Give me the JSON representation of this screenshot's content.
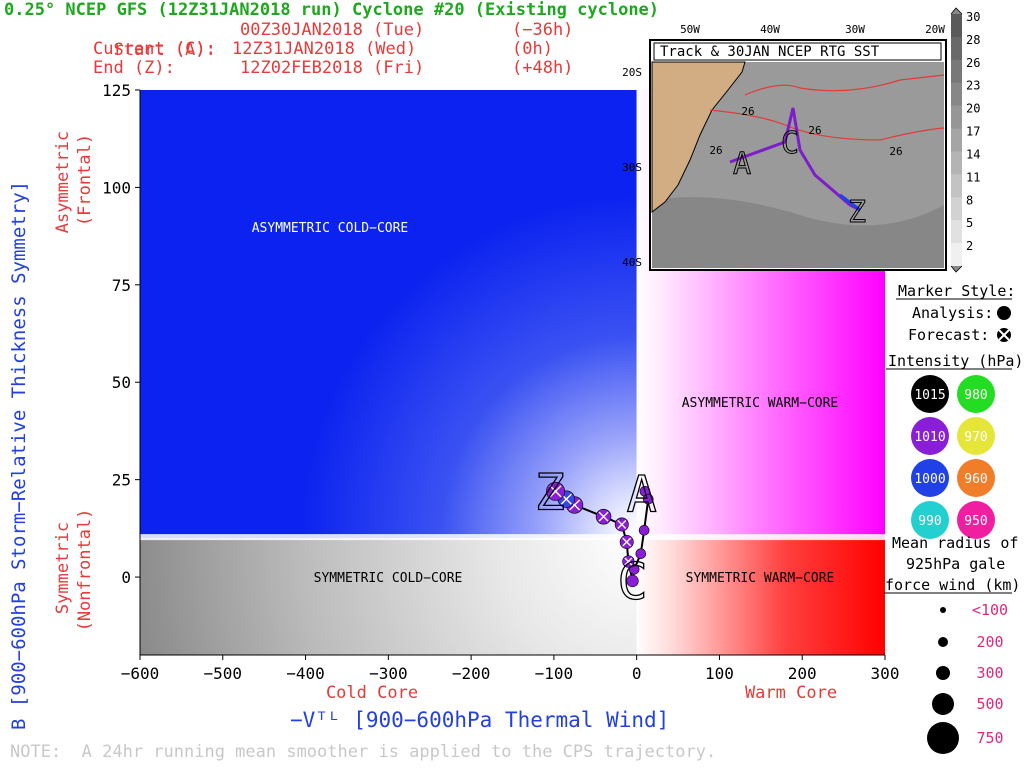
{
  "header": {
    "title": "0.25° NCEP GFS (12Z31JAN2018 run) Cyclone #20 (Existing cyclone)",
    "start_label": "Start (A):",
    "start_time": "00Z30JAN2018 (Tue)",
    "start_offset": "(−36h)",
    "current_label": "Current (C):",
    "current_time": "12Z31JAN2018 (Wed)",
    "current_offset": "(0h)",
    "end_label": "End (Z):",
    "end_time": "12Z02FEB2018 (Fri)",
    "end_offset": "(+48h)"
  },
  "chart_data": {
    "type": "scatter",
    "xlabel": "−Vᵀᴸ [900−600hPa Thermal Wind]",
    "ylabel": "B [900−600hPa Storm−Relative Thickness Symmetry]",
    "xlim": [
      -600,
      300
    ],
    "ylim": [
      -20,
      125
    ],
    "xticks": [
      "−600",
      "−500",
      "−400",
      "−300",
      "−200",
      "−100",
      "0",
      "100",
      "200",
      "300"
    ],
    "yticks": [
      "125",
      "100",
      "75",
      "50",
      "25",
      "0"
    ],
    "y_label_asymmetric": "Asymmetric",
    "y_label_frontal": "(Frontal)",
    "y_label_symmetric": "Symmetric",
    "y_label_nonfrontal": "(Nonfrontal)",
    "x_label_cold": "Cold Core",
    "x_label_warm": "Warm Core",
    "regions": {
      "asym_cold": "ASYMMETRIC COLD−CORE",
      "asym_warm": "ASYMMETRIC WARM−CORE",
      "sym_cold": "SYMMETRIC COLD−CORE",
      "sym_warm": "SYMMETRIC WARM−CORE"
    },
    "markers": {
      "start": "A",
      "current": "C",
      "end": "Z"
    },
    "trajectory": [
      {
        "x": 10,
        "y": 22,
        "kind": "analysis",
        "size": 6
      },
      {
        "x": 14,
        "y": 20,
        "kind": "analysis",
        "size": 6
      },
      {
        "x": 9,
        "y": 12,
        "kind": "analysis",
        "size": 6
      },
      {
        "x": 5,
        "y": 6,
        "kind": "analysis",
        "size": 6
      },
      {
        "x": -3,
        "y": 2,
        "kind": "analysis",
        "size": 6
      },
      {
        "x": -5,
        "y": -1,
        "kind": "analysis",
        "size": 7
      },
      {
        "x": -10,
        "y": 4,
        "kind": "forecast",
        "size": 7
      },
      {
        "x": -12,
        "y": 9,
        "kind": "forecast",
        "size": 8
      },
      {
        "x": -18,
        "y": 13.5,
        "kind": "forecast",
        "size": 8
      },
      {
        "x": -40,
        "y": 15.5,
        "kind": "forecast",
        "size": 9
      },
      {
        "x": -75,
        "y": 18.5,
        "kind": "forecast",
        "size": 10
      },
      {
        "x": -85,
        "y": 20,
        "kind": "forecast",
        "size": 10
      },
      {
        "x": -98,
        "y": 22,
        "kind": "forecast",
        "size": 11
      }
    ],
    "grid": false
  },
  "inset": {
    "title": "Track & 30JAN NCEP RTG SST",
    "lon_labels": [
      "50W",
      "40W",
      "30W",
      "20W"
    ],
    "lat_labels": [
      "20S",
      "30S",
      "40S"
    ],
    "sst_labels": [
      "26",
      "26",
      "26",
      "26"
    ],
    "colorbar": [
      "30",
      "28",
      "26",
      "23",
      "20",
      "17",
      "14",
      "11",
      "8",
      "5",
      "2"
    ]
  },
  "legend": {
    "marker_style_title": "Marker Style:",
    "analysis": "Analysis:",
    "forecast": "Forecast:",
    "intensity_title": "Intensity (hPa):",
    "intensity": [
      {
        "value": "1015",
        "color": "#000000"
      },
      {
        "value": "980",
        "color": "#22dd22"
      },
      {
        "value": "1010",
        "color": "#8a1ed8"
      },
      {
        "value": "970",
        "color": "#e6e63a"
      },
      {
        "value": "1000",
        "color": "#2040e8"
      },
      {
        "value": "960",
        "color": "#f07d2a"
      },
      {
        "value": "990",
        "color": "#22d0d0"
      },
      {
        "value": "950",
        "color": "#f01ea0"
      }
    ],
    "radius_title_1": "Mean radius of",
    "radius_title_2": "925hPa gale",
    "radius_title_3": "force wind (km):",
    "radius": [
      "<100",
      "200",
      "300",
      "500",
      "750"
    ]
  },
  "footer": {
    "note": "NOTE:  A 24hr running mean smoother is applied to the CPS trajectory."
  },
  "colors": {
    "title": "#1fa81f",
    "info": "#e83a3a",
    "axis_label": "#2440e0",
    "asym_cold": "#0b22f0",
    "asym_warm": "#ff00ff",
    "sym_warm": "#ff0000",
    "sym_cold": "#6e6e6e",
    "track": "#7e1ec8"
  }
}
